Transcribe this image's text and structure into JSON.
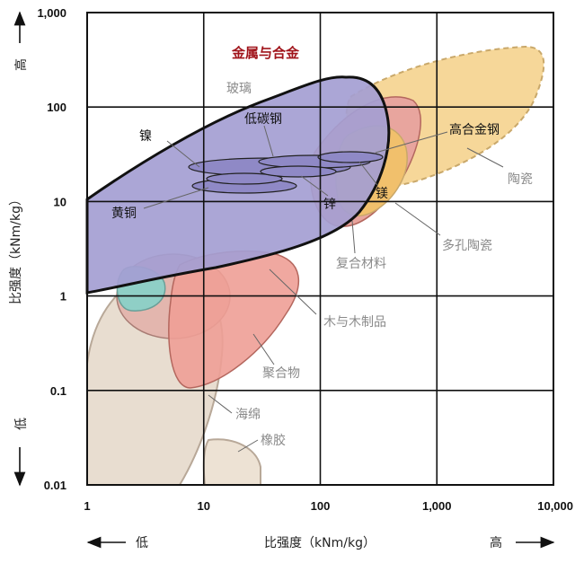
{
  "chart_data": {
    "type": "other",
    "x_scale": "log",
    "y_scale": "log",
    "xlim": [
      1,
      10000
    ],
    "ylim": [
      0.01,
      1000
    ],
    "grid": true,
    "xlabel": "比强度（kNm/kg）",
    "ylabel": "比强度（kNm/kg）",
    "x_ticks": [
      "1",
      "10",
      "100",
      "1,000",
      "10,000"
    ],
    "y_ticks": [
      "0.01",
      "0.1",
      "1",
      "10",
      "100",
      "1,000"
    ],
    "x_low": "低",
    "x_high": "高",
    "y_low": "低",
    "y_high": "高",
    "regions": [
      {
        "name": "橡胶",
        "color": "#ede2d4"
      },
      {
        "name": "海绵",
        "color": "#e8ddd0"
      },
      {
        "name": "木与木制品",
        "color": "#e3b6ae"
      },
      {
        "name": "聚合物",
        "color": "#ee9f96"
      },
      {
        "name": "复合材料",
        "color": "#e8a59e"
      },
      {
        "name": "玻璃",
        "color": "#8fcfc6"
      },
      {
        "name": "陶瓷",
        "color": "#f6d799"
      },
      {
        "name": "多孔陶瓷",
        "color": "#f1c06c"
      },
      {
        "name": "金属与合金",
        "color": "#a49ed2"
      },
      {
        "name": "镍",
        "color": "#8f89c6"
      },
      {
        "name": "低碳钢",
        "color": "#8f89c6"
      },
      {
        "name": "高合金钢",
        "color": "#8f89c6"
      },
      {
        "name": "黄铜",
        "color": "#8f89c6"
      },
      {
        "name": "锌",
        "color": "#8f89c6"
      },
      {
        "name": "镁",
        "color": "#8f89c6"
      }
    ]
  },
  "labels": {
    "metals": "金属与合金",
    "glass": "玻璃",
    "low_carbon_steel": "低碳钢",
    "nickel": "镍",
    "high_alloy_steel": "高合金钢",
    "ceramics": "陶瓷",
    "brass": "黄铜",
    "zinc": "锌",
    "magnesium": "镁",
    "porous_ceramics": "多孔陶瓷",
    "composites": "复合材料",
    "wood": "木与木制品",
    "polymers": "聚合物",
    "foam": "海绵",
    "rubber": "橡胶"
  }
}
